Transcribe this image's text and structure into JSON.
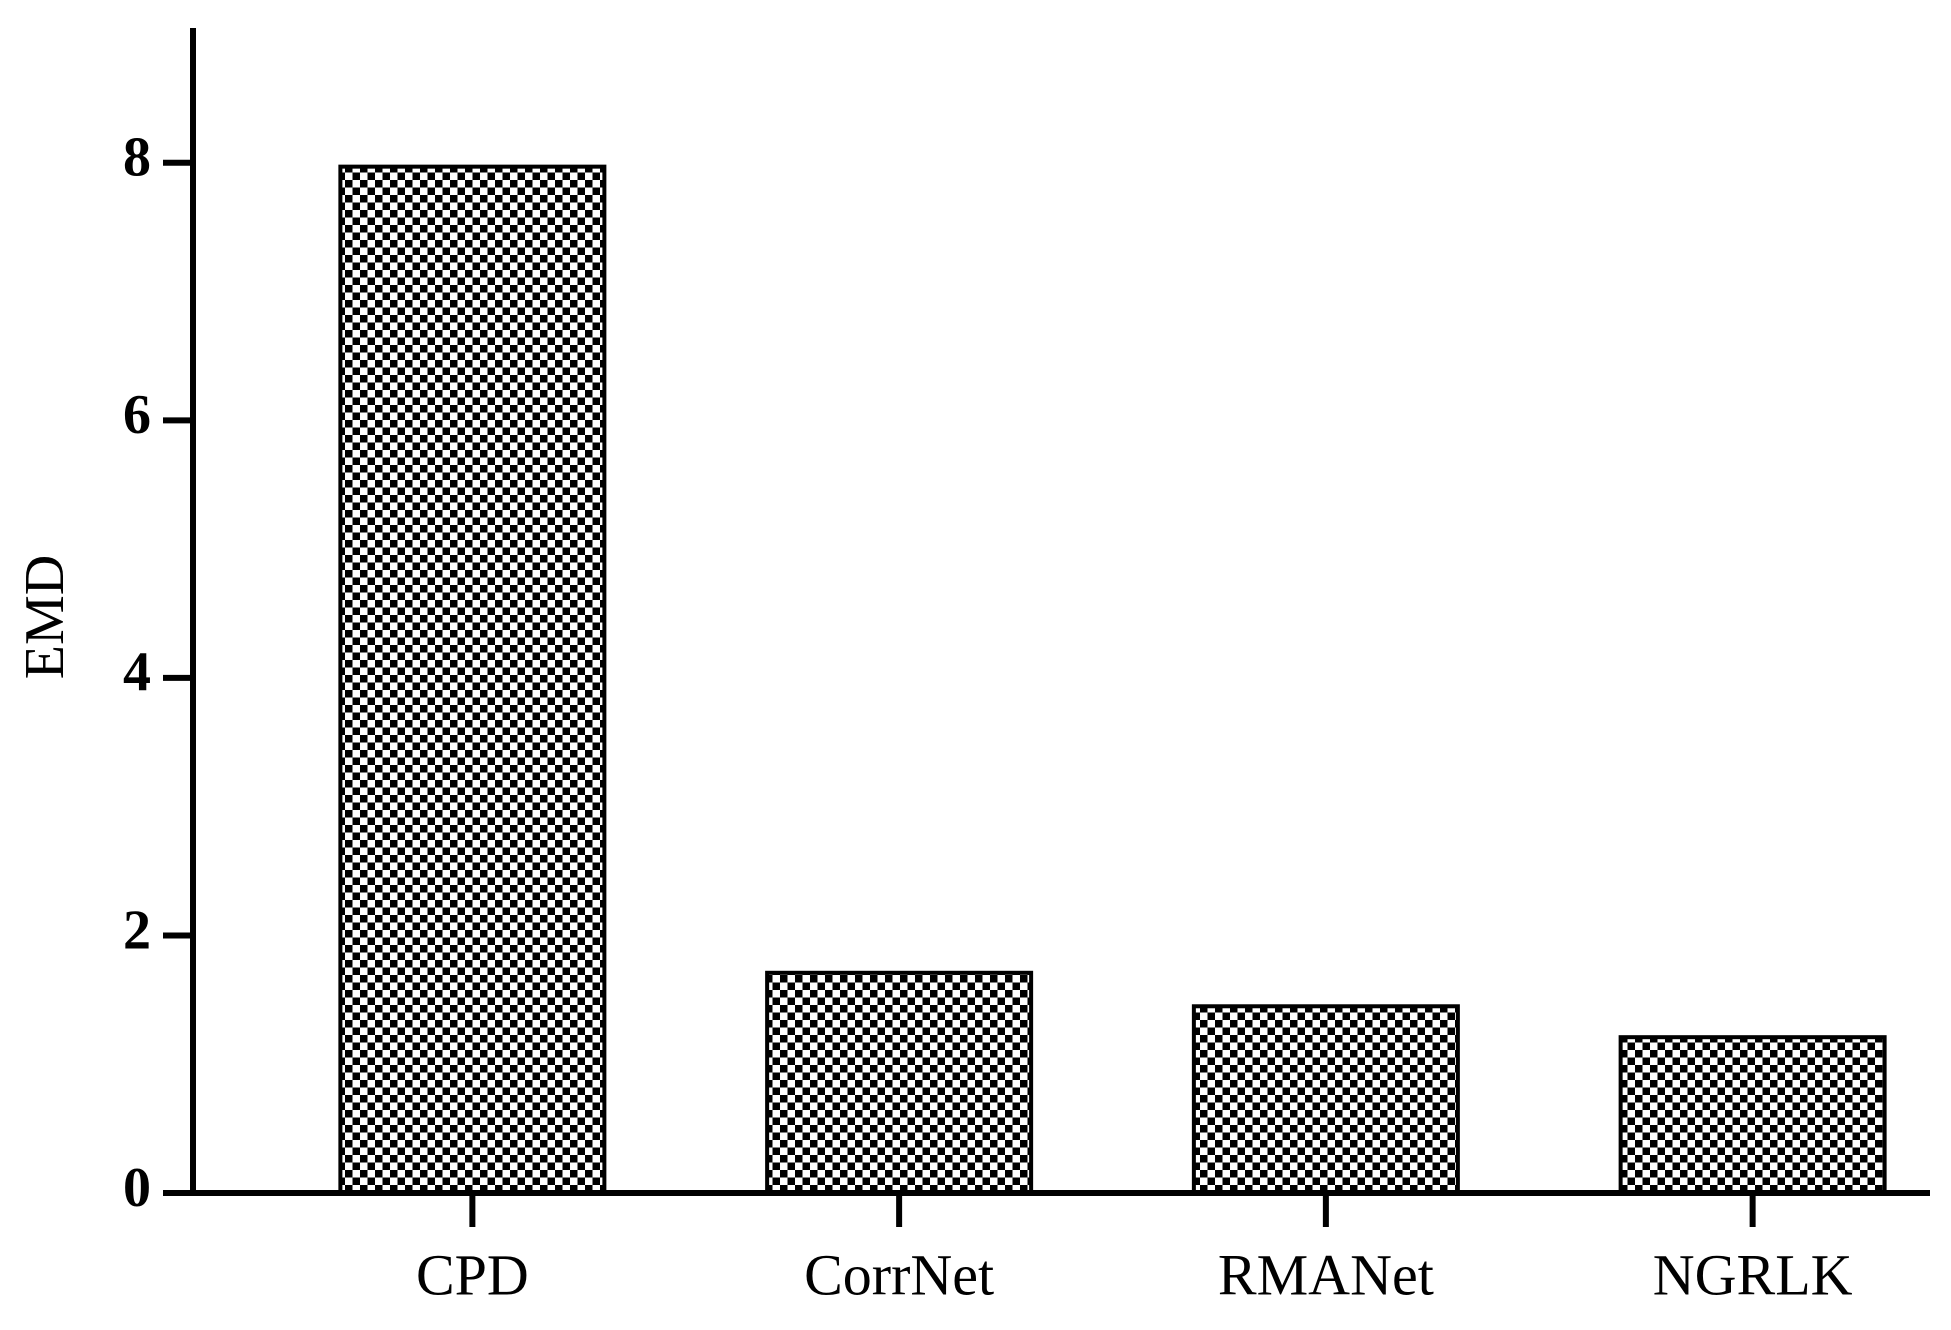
{
  "chart_data": {
    "type": "bar",
    "y_label": "EMD",
    "categories": [
      "CPD",
      "CorrNet",
      "RMANet",
      "NGRLK"
    ],
    "values": [
      7.97,
      1.71,
      1.45,
      1.21
    ],
    "color": "#000000",
    "ylim": [
      0,
      9
    ],
    "yticks": [
      0,
      2,
      4,
      6,
      8
    ],
    "grid": false
  }
}
